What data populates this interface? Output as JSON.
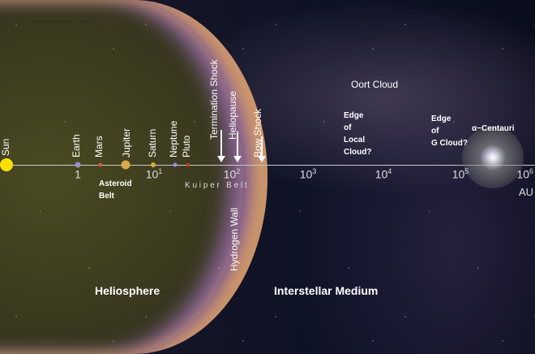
{
  "bodies": {
    "sun": "Sun",
    "earth": "Earth",
    "mars": "Mars",
    "jupiter": "Jupiter",
    "saturn": "Saturn",
    "neptune": "Neptune",
    "pluto": "Pluto"
  },
  "boundaries": {
    "termination_shock": "Termination Shock",
    "heliopause": "Heliopause",
    "bow_shock": "Bow Shock",
    "hydrogen_wall": "Hydrogen Wall"
  },
  "regions": {
    "asteroid_belt": [
      "Asteroid",
      "Belt"
    ],
    "kuiper_belt": "K u i p e r   B e l t",
    "oort_cloud": "Oort  Cloud",
    "edge_local_cloud": [
      "Edge",
      "of",
      "Local",
      "Cloud?"
    ],
    "edge_g_cloud": [
      "Edge",
      "of",
      "G Cloud?"
    ],
    "alpha_centauri": "α−Centauri",
    "heliosphere": "Heliosphere",
    "interstellar_medium": "Interstellar Medium"
  },
  "axis": {
    "unit": "AU",
    "ticks": [
      {
        "base": "1",
        "exp": ""
      },
      {
        "base": "10",
        "exp": "1"
      },
      {
        "base": "10",
        "exp": "2"
      },
      {
        "base": "10",
        "exp": "3"
      },
      {
        "base": "10",
        "exp": "4"
      },
      {
        "base": "10",
        "exp": "5"
      },
      {
        "base": "10",
        "exp": "6"
      }
    ],
    "scale": "log"
  }
}
